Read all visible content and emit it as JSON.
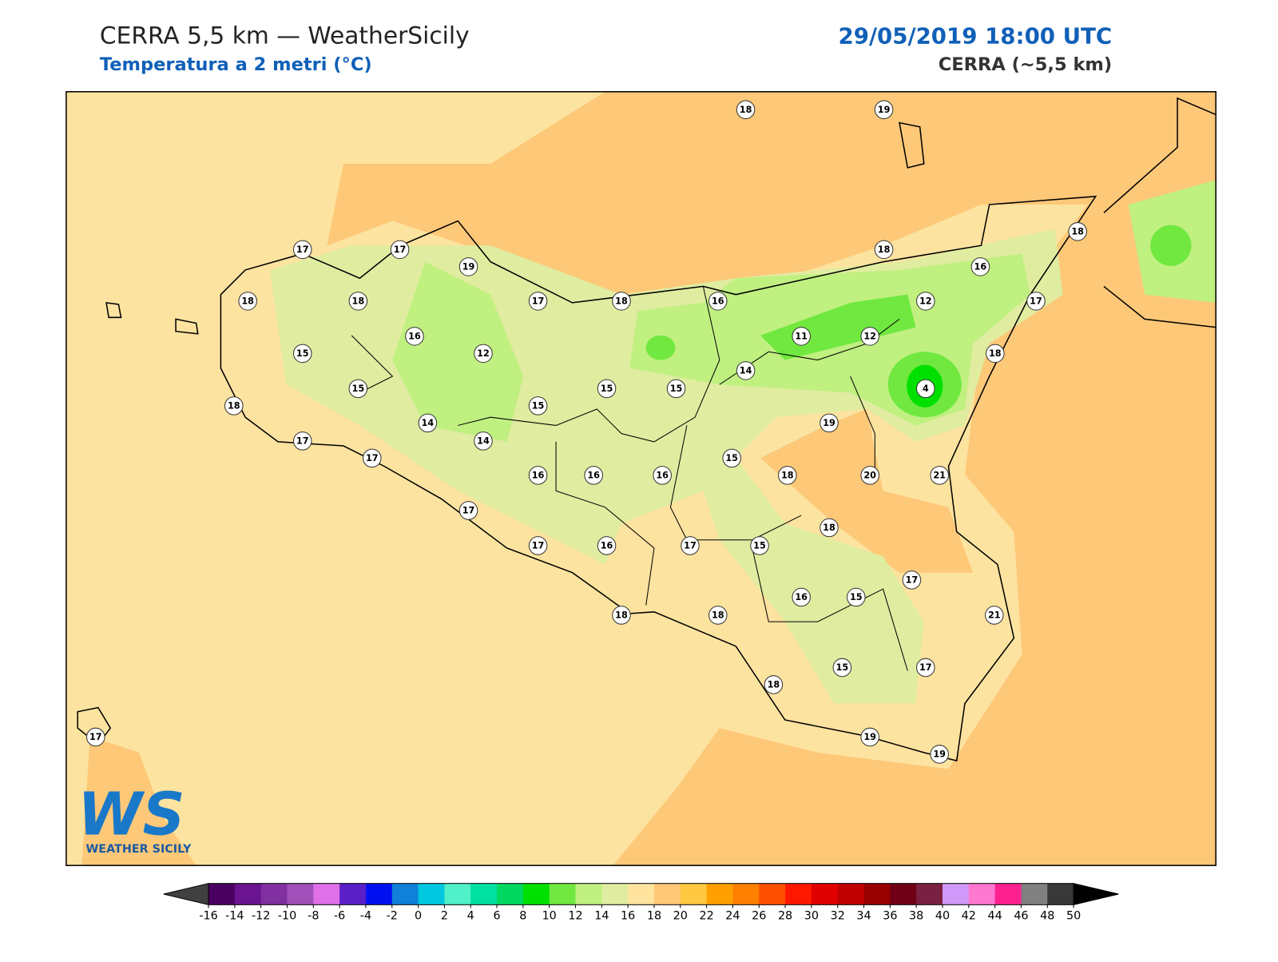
{
  "header": {
    "title": "CERRA 5,5 km — WeatherSicily",
    "subtitle": "Temperatura a 2 metri (°C)",
    "datetime": "29/05/2019 18:00 UTC",
    "model": "CERRA (~5,5 km)"
  },
  "stations": [
    17,
    17,
    19,
    18,
    18,
    17,
    18,
    16,
    18,
    19,
    18,
    16,
    18,
    12,
    17,
    11,
    12,
    18,
    16,
    12,
    15,
    15,
    15,
    15,
    14,
    4,
    18,
    15,
    14,
    14,
    19,
    17,
    17,
    15,
    16,
    16,
    16,
    18,
    20,
    21,
    17,
    18,
    17,
    16,
    17,
    15,
    17,
    16,
    15,
    21,
    18,
    18,
    15,
    17,
    18,
    19,
    19,
    17
  ],
  "logo": {
    "mark": "WS",
    "name": "WEATHER SICILY"
  },
  "colorbar": {
    "ticks": [
      -16,
      -14,
      -12,
      -10,
      -8,
      -6,
      -4,
      -2,
      0,
      2,
      4,
      6,
      8,
      10,
      12,
      14,
      16,
      18,
      20,
      22,
      24,
      26,
      28,
      30,
      32,
      34,
      36,
      38,
      40,
      42,
      44,
      46,
      48,
      50
    ],
    "colors": [
      "#4a0060",
      "#6a1490",
      "#8030a0",
      "#a050b8",
      "#e070e8",
      "#5a20c8",
      "#0010f0",
      "#1080d8",
      "#00c8e0",
      "#50f0c8",
      "#00e0a0",
      "#00d860",
      "#00e000",
      "#70e840",
      "#c0f080",
      "#e0eca0",
      "#ffe4a0",
      "#ffc878",
      "#ffc840",
      "#ffa000",
      "#ff8000",
      "#ff5000",
      "#ff1800",
      "#e00000",
      "#c00000",
      "#980000",
      "#700018",
      "#7a2040",
      "#d098f8",
      "#ff78d0",
      "#ff2090",
      "#808080",
      "#383838"
    ],
    "under_color": "#404040",
    "over_color": "#000000"
  }
}
